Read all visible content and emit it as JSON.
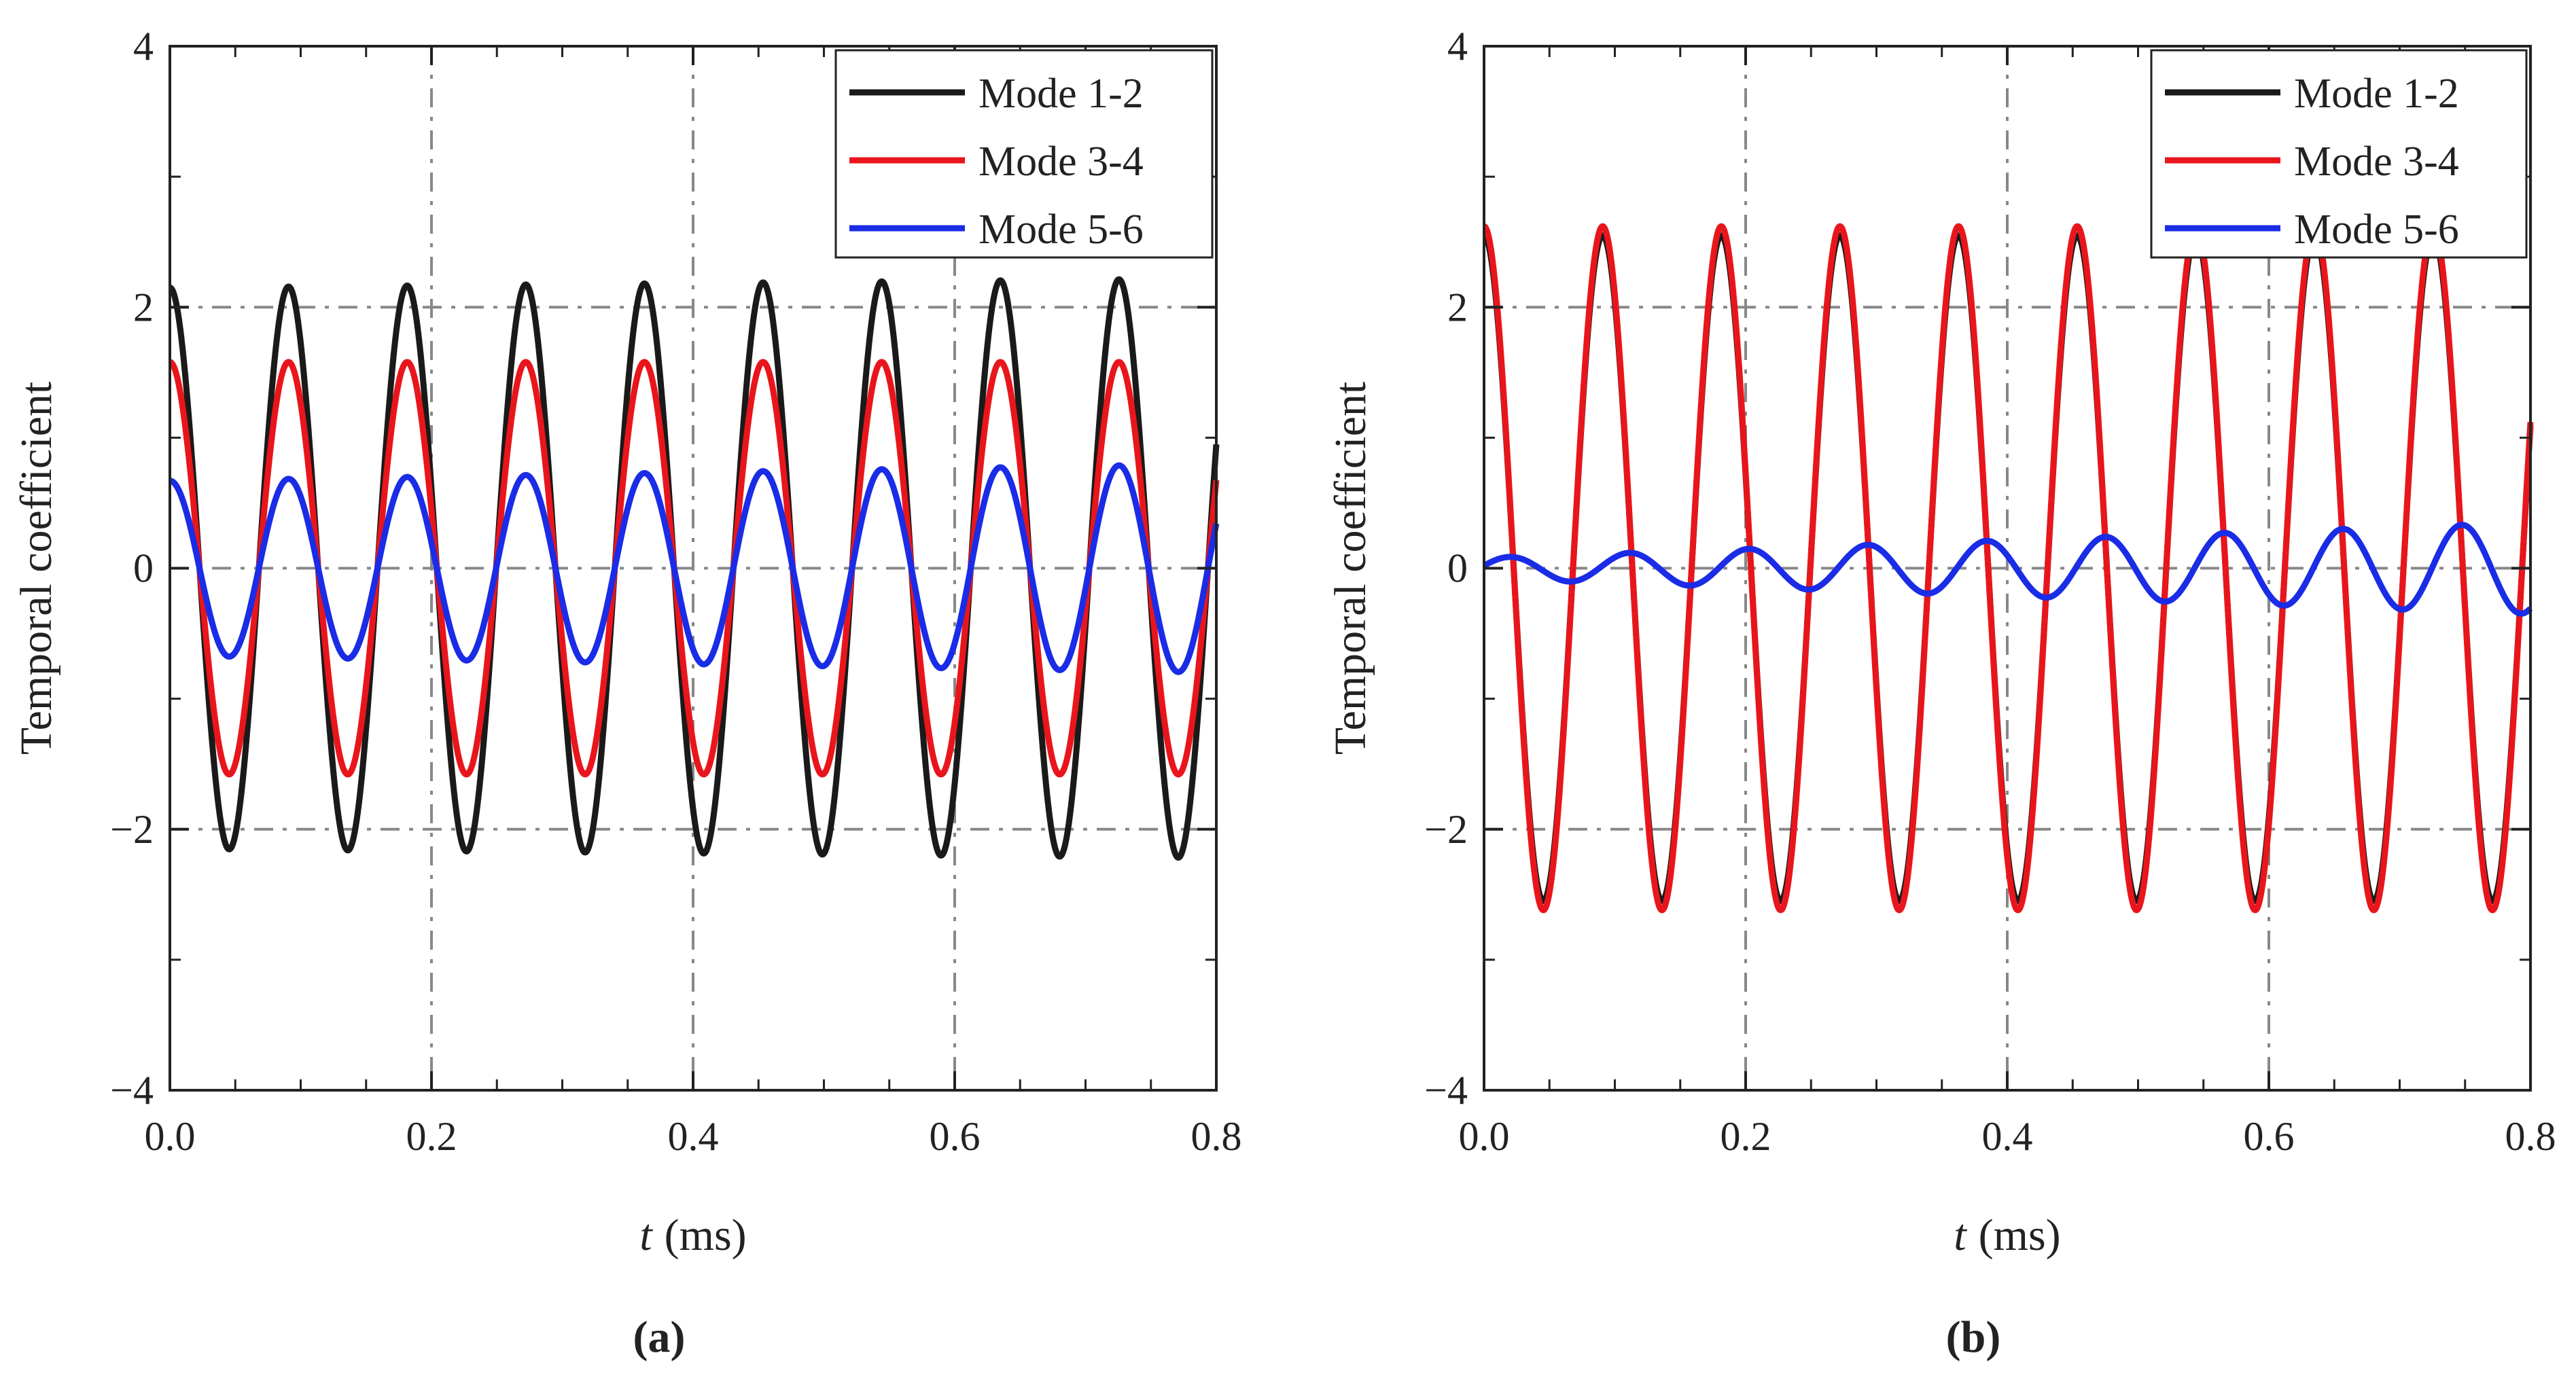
{
  "chart_data": [
    {
      "panel": "a",
      "panel_label": "(a)",
      "type": "line",
      "xlabel": {
        "var": "t",
        "unit": "(ms)"
      },
      "ylabel": "Temporal coefficient",
      "xlim": [
        0,
        0.8
      ],
      "ylim": [
        -4,
        4
      ],
      "xticks": [
        0.0,
        0.2,
        0.4,
        0.6,
        0.8
      ],
      "xtick_labels": [
        "0.0",
        "0.2",
        "0.4",
        "0.6",
        "0.8"
      ],
      "yticks": [
        -4,
        -2,
        0,
        2,
        4
      ],
      "ytick_labels": [
        "−4",
        "−2",
        "0",
        "2",
        "4"
      ],
      "grid": true,
      "legend_position": "top-right",
      "series": [
        {
          "name": "Mode 1-2",
          "color": "#1a1a1a",
          "period_ms": 0.0907,
          "amplitude": [
            2.15,
            2.22
          ],
          "phase": "cos",
          "offset": 0
        },
        {
          "name": "Mode 3-4",
          "color": "#e8161c",
          "period_ms": 0.0907,
          "amplitude": [
            1.58,
            1.58
          ],
          "phase": "cos",
          "offset": 0
        },
        {
          "name": "Mode 5-6",
          "color": "#1a2ce6",
          "period_ms": 0.0907,
          "amplitude": [
            0.67,
            0.8
          ],
          "phase": "cos",
          "offset": 0
        }
      ]
    },
    {
      "panel": "b",
      "panel_label": "(b)",
      "type": "line",
      "xlabel": {
        "var": "t",
        "unit": "(ms)"
      },
      "ylabel": "Temporal coefficient",
      "xlim": [
        0,
        0.8
      ],
      "ylim": [
        -4,
        4
      ],
      "xticks": [
        0.0,
        0.2,
        0.4,
        0.6,
        0.8
      ],
      "xtick_labels": [
        "0.0",
        "0.2",
        "0.4",
        "0.6",
        "0.8"
      ],
      "yticks": [
        -4,
        -2,
        0,
        2,
        4
      ],
      "ytick_labels": [
        "−4",
        "−2",
        "0",
        "2",
        "4"
      ],
      "grid": true,
      "legend_position": "top-right",
      "series": [
        {
          "name": "Mode 1-2",
          "color": "#1a1a1a",
          "period_ms": 0.0907,
          "amplitude": [
            2.55,
            2.55
          ],
          "phase": "cos",
          "offset": 0
        },
        {
          "name": "Mode 3-4",
          "color": "#e8161c",
          "period_ms": 0.0907,
          "amplitude": [
            2.62,
            2.62
          ],
          "phase": "cos",
          "offset": 0
        },
        {
          "name": "Mode 5-6",
          "color": "#1a2ce6",
          "period_ms": 0.0907,
          "amplitude": [
            0.08,
            0.35
          ],
          "phase": "sin",
          "offset": 0.02
        }
      ]
    }
  ]
}
